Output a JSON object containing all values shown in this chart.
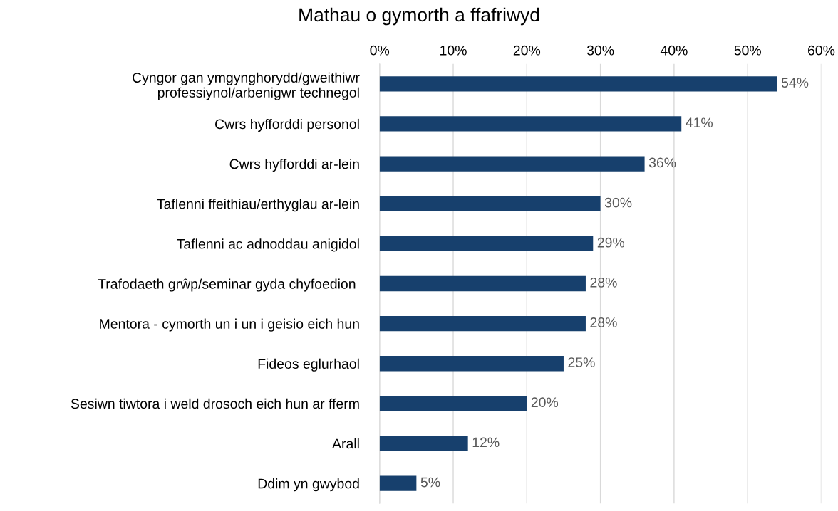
{
  "chart_data": {
    "type": "bar",
    "orientation": "horizontal",
    "title": "Mathau o gymorth a ffafriwyd",
    "categories": [
      "Cyngor gan ymgynghorydd/gweithiwr\nprofessiynol/arbenigwr technegol",
      "Cwrs hyfforddi personol",
      "Cwrs hyfforddi ar-lein",
      "Taflenni ffeithiau/erthyglau ar-lein",
      "Taflenni ac adnoddau anigidol",
      "Trafodaeth grŵp/seminar gyda chyfoedion ",
      "Mentora - cymorth un i un i geisio eich hun",
      "Fideos eglurhaol",
      "Sesiwn tiwtora i weld drosoch eich hun ar fferm",
      "Arall",
      "Ddim yn gwybod"
    ],
    "values": [
      54,
      41,
      36,
      30,
      29,
      28,
      28,
      25,
      20,
      12,
      5
    ],
    "value_labels": [
      "54%",
      "41%",
      "36%",
      "30%",
      "29%",
      "28%",
      "28%",
      "25%",
      "20%",
      "12%",
      "5%"
    ],
    "color": "#17406d",
    "xlim": [
      0,
      60
    ],
    "xticks": [
      {
        "value": 0,
        "label": "0%"
      },
      {
        "value": 10,
        "label": "10%"
      },
      {
        "value": 20,
        "label": "20%"
      },
      {
        "value": 30,
        "label": "30%"
      },
      {
        "value": 40,
        "label": "40%"
      },
      {
        "value": 50,
        "label": "50%"
      },
      {
        "value": 60,
        "label": "60%"
      }
    ],
    "grid": "x"
  }
}
